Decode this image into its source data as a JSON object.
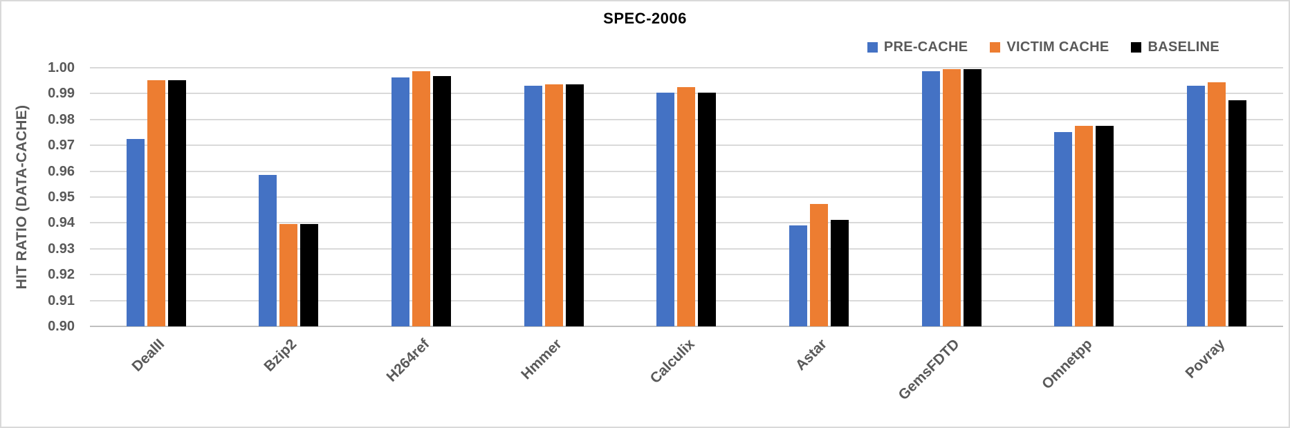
{
  "chart_data": {
    "type": "bar",
    "title": "SPEC-2006",
    "ylabel": "HIT RATIO (DATA-CACHE)",
    "xlabel": "",
    "ylim": [
      0.9,
      1.0
    ],
    "ytick_step": 0.01,
    "yticks": [
      "1.00",
      "0.99",
      "0.98",
      "0.97",
      "0.96",
      "0.95",
      "0.94",
      "0.93",
      "0.92",
      "0.91",
      "0.90"
    ],
    "grid": true,
    "legend_position": "top-right",
    "categories": [
      "DealII",
      "Bzip2",
      "H264ref",
      "Hmmer",
      "Calculix",
      "Astar",
      "GemsFDTD",
      "Omnetpp",
      "Povray"
    ],
    "series": [
      {
        "name": "PRE-CACHE",
        "color": "#4472C4",
        "values": [
          0.9725,
          0.9585,
          0.9962,
          0.993,
          0.9903,
          0.939,
          0.9987,
          0.9752,
          0.993
        ]
      },
      {
        "name": "VICTIM CACHE",
        "color": "#ED7D31",
        "values": [
          0.9953,
          0.9395,
          0.9988,
          0.9936,
          0.9925,
          0.9473,
          0.9995,
          0.9775,
          0.9945
        ]
      },
      {
        "name": "BASELINE",
        "color": "#000000",
        "values": [
          0.9953,
          0.9397,
          0.9967,
          0.9936,
          0.9903,
          0.9412,
          0.9995,
          0.9775,
          0.9875
        ]
      }
    ],
    "colors": {
      "grid": "#d9d9d9",
      "axis_line": "#bfbfbf",
      "axis_text": "#595959",
      "title_text": "#000000",
      "background": "#ffffff"
    }
  }
}
